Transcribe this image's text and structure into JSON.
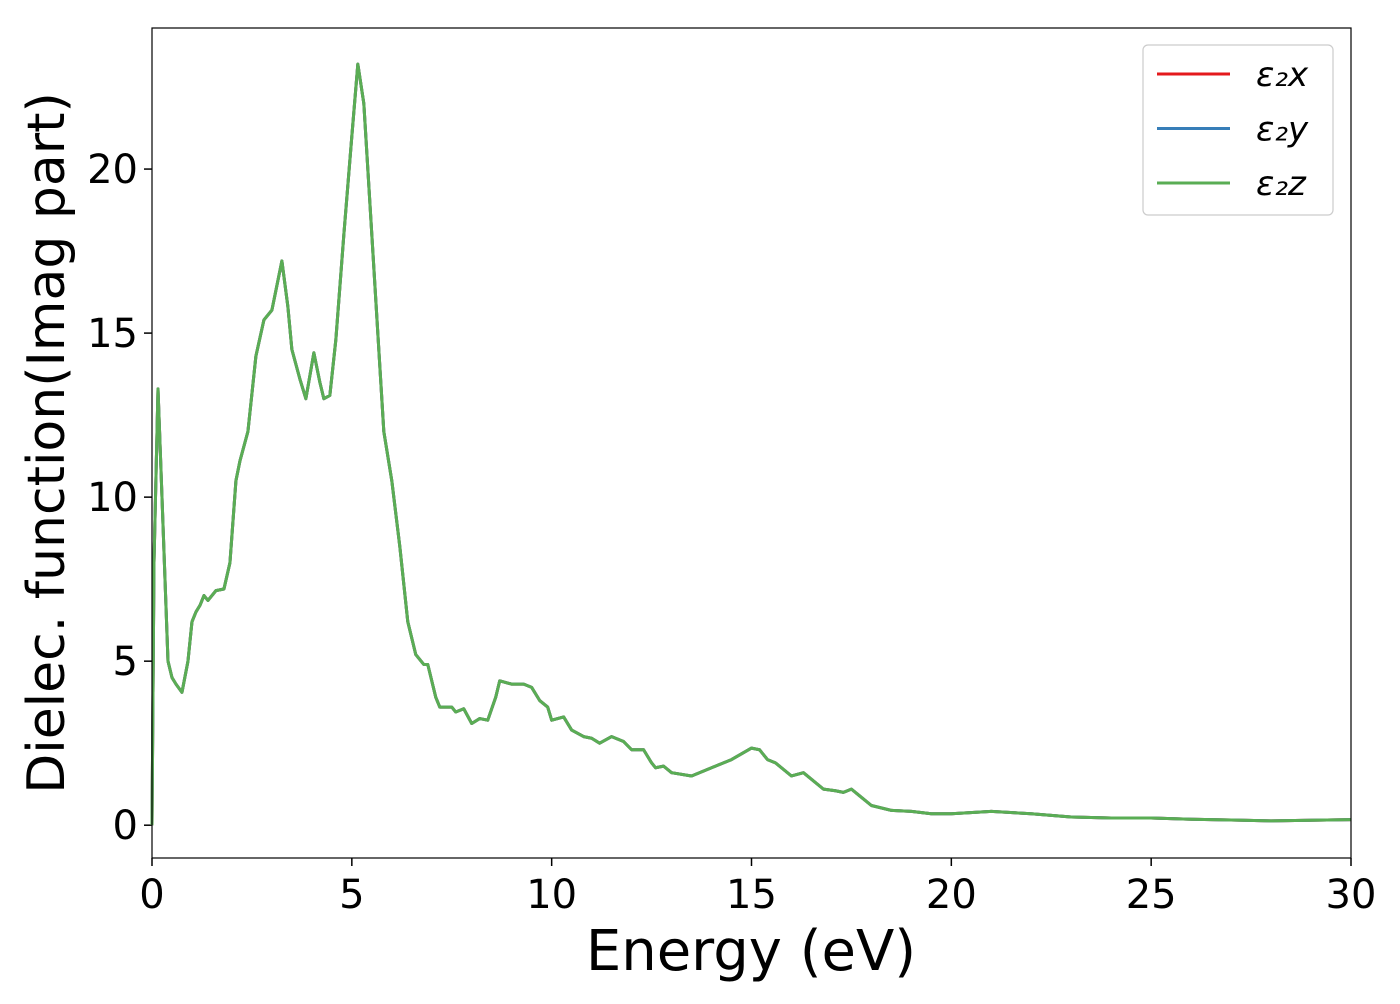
{
  "chart_data": {
    "type": "line",
    "xlabel": "Energy (eV)",
    "ylabel": "Dielec. function(Imag part)",
    "x": [
      0,
      0.05,
      0.15,
      0.25,
      0.4,
      0.5,
      0.6,
      0.75,
      0.9,
      1.0,
      1.1,
      1.2,
      1.3,
      1.4,
      1.6,
      1.8,
      1.95,
      2.1,
      2.2,
      2.4,
      2.6,
      2.8,
      3.0,
      3.1,
      3.25,
      3.4,
      3.5,
      3.7,
      3.85,
      4.05,
      4.2,
      4.3,
      4.45,
      4.6,
      4.8,
      5.0,
      5.15,
      5.3,
      5.5,
      5.7,
      5.8,
      6.0,
      6.2,
      6.4,
      6.6,
      6.8,
      6.9,
      7.1,
      7.2,
      7.5,
      7.6,
      7.8,
      8.0,
      8.2,
      8.4,
      8.6,
      8.7,
      9.0,
      9.3,
      9.5,
      9.7,
      9.9,
      10.0,
      10.3,
      10.5,
      10.8,
      11.0,
      11.2,
      11.5,
      11.8,
      12.0,
      12.3,
      12.5,
      12.6,
      12.8,
      13.0,
      13.5,
      14.0,
      14.5,
      15.0,
      15.2,
      15.4,
      15.6,
      16.0,
      16.3,
      16.8,
      17.1,
      17.3,
      17.5,
      17.7,
      18.0,
      18.5,
      19.0,
      19.5,
      20.0,
      21.0,
      22.0,
      23.0,
      24.0,
      25.0,
      26.0,
      27.0,
      28.0,
      29.0,
      30.0
    ],
    "series": [
      {
        "name": "ε₂x",
        "color": "#e41a1c",
        "values": [
          0,
          8,
          13.3,
          10,
          5,
          4.5,
          4.3,
          4.05,
          5,
          6.2,
          6.5,
          6.7,
          7.0,
          6.85,
          7.15,
          7.2,
          8,
          10.5,
          11.1,
          12,
          14.3,
          15.4,
          15.7,
          16.3,
          17.2,
          15.8,
          14.5,
          13.6,
          13,
          14.4,
          13.5,
          13.0,
          13.1,
          14.8,
          18,
          21,
          23.2,
          22,
          18,
          14,
          12,
          10.5,
          8.5,
          6.2,
          5.2,
          4.9,
          4.9,
          3.9,
          3.6,
          3.6,
          3.45,
          3.55,
          3.1,
          3.25,
          3.2,
          3.9,
          4.4,
          4.3,
          4.3,
          4.2,
          3.8,
          3.6,
          3.2,
          3.3,
          2.9,
          2.7,
          2.65,
          2.5,
          2.7,
          2.55,
          2.3,
          2.3,
          1.9,
          1.75,
          1.8,
          1.6,
          1.5,
          1.75,
          2.0,
          2.35,
          2.3,
          2.0,
          1.9,
          1.5,
          1.6,
          1.1,
          1.05,
          1.0,
          1.1,
          0.9,
          0.6,
          0.45,
          0.42,
          0.35,
          0.35,
          0.42,
          0.35,
          0.25,
          0.22,
          0.22,
          0.18,
          0.16,
          0.13,
          0.15,
          0.17
        ]
      },
      {
        "name": "ε₂y",
        "color": "#377eb8",
        "values": [
          0,
          8,
          13.3,
          10,
          5,
          4.5,
          4.3,
          4.05,
          5,
          6.2,
          6.5,
          6.7,
          7.0,
          6.85,
          7.15,
          7.2,
          8,
          10.5,
          11.1,
          12,
          14.3,
          15.4,
          15.7,
          16.3,
          17.2,
          15.8,
          14.5,
          13.6,
          13,
          14.4,
          13.5,
          13.0,
          13.1,
          14.8,
          18,
          21,
          23.2,
          22,
          18,
          14,
          12,
          10.5,
          8.5,
          6.2,
          5.2,
          4.9,
          4.9,
          3.9,
          3.6,
          3.6,
          3.45,
          3.55,
          3.1,
          3.25,
          3.2,
          3.9,
          4.4,
          4.3,
          4.3,
          4.2,
          3.8,
          3.6,
          3.2,
          3.3,
          2.9,
          2.7,
          2.65,
          2.5,
          2.7,
          2.55,
          2.3,
          2.3,
          1.9,
          1.75,
          1.8,
          1.6,
          1.5,
          1.75,
          2.0,
          2.35,
          2.3,
          2.0,
          1.9,
          1.5,
          1.6,
          1.1,
          1.05,
          1.0,
          1.1,
          0.9,
          0.6,
          0.45,
          0.42,
          0.35,
          0.35,
          0.42,
          0.35,
          0.25,
          0.22,
          0.22,
          0.18,
          0.16,
          0.13,
          0.15,
          0.17
        ]
      },
      {
        "name": "ε₂z",
        "color": "#5aad54",
        "values": [
          0,
          8,
          13.3,
          10,
          5,
          4.5,
          4.3,
          4.05,
          5,
          6.2,
          6.5,
          6.7,
          7.0,
          6.85,
          7.15,
          7.2,
          8,
          10.5,
          11.1,
          12,
          14.3,
          15.4,
          15.7,
          16.3,
          17.2,
          15.8,
          14.5,
          13.6,
          13,
          14.4,
          13.5,
          13.0,
          13.1,
          14.8,
          18,
          21,
          23.2,
          22,
          18,
          14,
          12,
          10.5,
          8.5,
          6.2,
          5.2,
          4.9,
          4.9,
          3.9,
          3.6,
          3.6,
          3.45,
          3.55,
          3.1,
          3.25,
          3.2,
          3.9,
          4.4,
          4.3,
          4.3,
          4.2,
          3.8,
          3.6,
          3.2,
          3.3,
          2.9,
          2.7,
          2.65,
          2.5,
          2.7,
          2.55,
          2.3,
          2.3,
          1.9,
          1.75,
          1.8,
          1.6,
          1.5,
          1.75,
          2.0,
          2.35,
          2.3,
          2.0,
          1.9,
          1.5,
          1.6,
          1.1,
          1.05,
          1.0,
          1.1,
          0.9,
          0.6,
          0.45,
          0.42,
          0.35,
          0.35,
          0.42,
          0.35,
          0.25,
          0.22,
          0.22,
          0.18,
          0.16,
          0.13,
          0.15,
          0.17
        ]
      }
    ],
    "xlim": [
      0,
      30
    ],
    "xticks": [
      0,
      5,
      10,
      15,
      20,
      25,
      30
    ],
    "ylim": [
      -1.0,
      24.3
    ],
    "yticks": [
      0,
      5,
      10,
      15,
      20
    ],
    "legend": "upper right",
    "grid": false
  }
}
